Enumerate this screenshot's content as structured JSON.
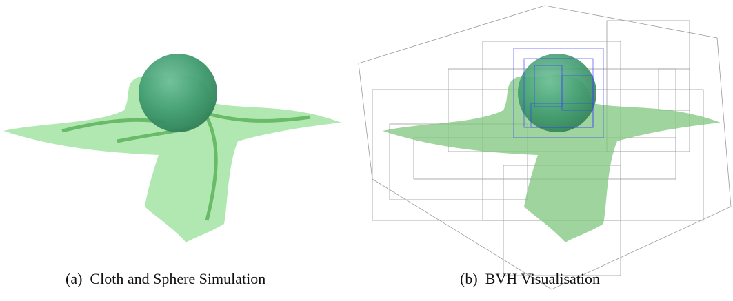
{
  "subfigures": [
    {
      "label": "(a)",
      "caption": "Cloth and Sphere Simulation"
    },
    {
      "label": "(b)",
      "caption": "BVH Visualisation"
    }
  ]
}
